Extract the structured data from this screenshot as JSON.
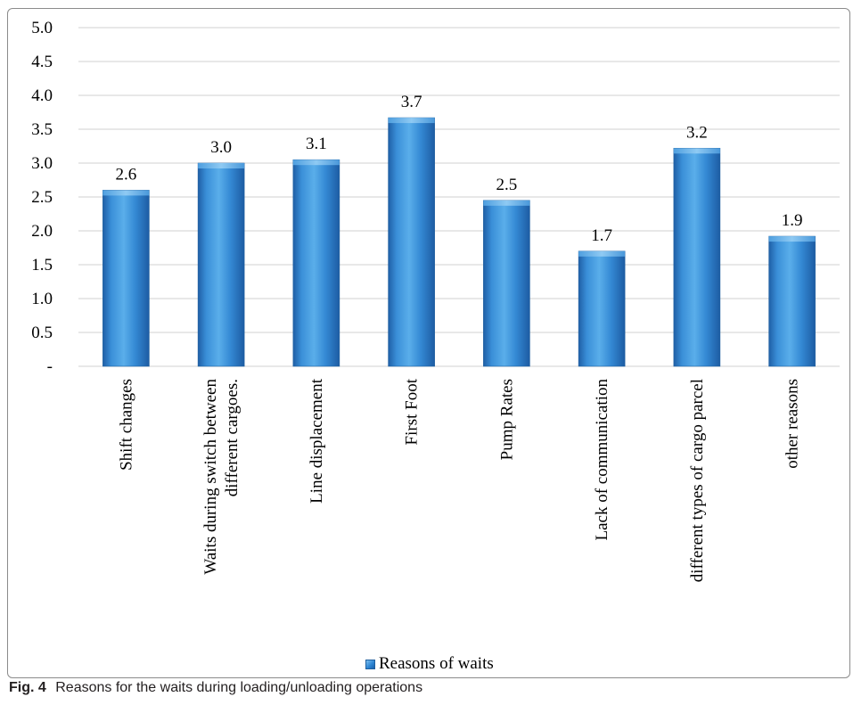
{
  "chart_data": {
    "type": "bar",
    "categories": [
      [
        "Shift changes"
      ],
      [
        "Waits during switch between",
        "different cargoes."
      ],
      [
        "Line displacement"
      ],
      [
        "First Foot"
      ],
      [
        "Pump Rates"
      ],
      [
        "Lack of communication"
      ],
      [
        "different types of cargo parcel"
      ],
      [
        "other reasons"
      ]
    ],
    "series": [
      {
        "name": "Reasons of waits",
        "values": [
          2.6,
          3.0,
          3.05,
          3.67,
          2.45,
          1.7,
          3.22,
          1.92
        ],
        "labels": [
          "2.6",
          "3.0",
          "3.1",
          "3.7",
          "2.5",
          "1.7",
          "3.2",
          "1.9"
        ]
      }
    ],
    "ylim": [
      0,
      5
    ],
    "yticks": [
      0,
      0.5,
      1,
      1.5,
      2,
      2.5,
      3,
      3.5,
      4,
      4.5,
      5
    ],
    "ytick_labels": [
      "-",
      "0.5",
      "1.0",
      "1.5",
      "2.0",
      "2.5",
      "3.0",
      "3.5",
      "4.0",
      "4.5",
      "5.0"
    ],
    "grid": true,
    "legend_position": "bottom",
    "bar_color": "#2e86d4"
  },
  "caption": {
    "label": "Fig. 4",
    "text": "Reasons for the waits during loading/unloading operations"
  }
}
